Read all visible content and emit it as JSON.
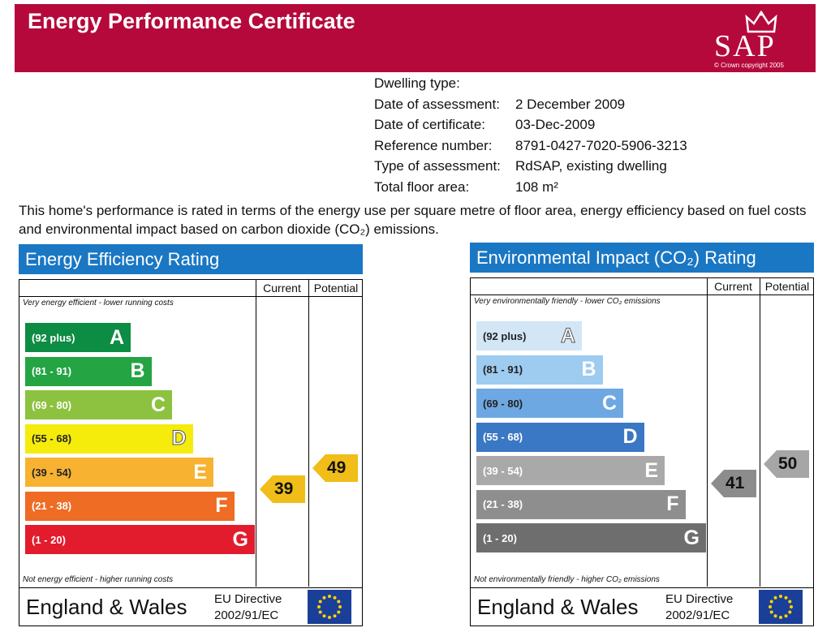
{
  "header": {
    "title": "Energy Performance Certificate",
    "sap_logo": "SAP",
    "copyright": "© Crown copyright 2005"
  },
  "details": [
    {
      "label": "Dwelling type:",
      "value": ""
    },
    {
      "label": "Date of assessment:",
      "value": "2 December 2009"
    },
    {
      "label": "Date of certificate:",
      "value": "03-Dec-2009"
    },
    {
      "label": "Reference number:",
      "value": "8791-0427-7020-5906-3213"
    },
    {
      "label": "Type of assessment:",
      "value": "RdSAP, existing dwelling"
    },
    {
      "label": "Total floor area:",
      "value": "108 m²"
    }
  ],
  "intro": "This home's performance is rated in terms of the energy use per square metre of floor area, energy efficiency based on fuel costs and environmental impact based on carbon dioxide (CO₂) emissions.",
  "energy": {
    "title": "Energy Efficiency Rating",
    "current_label": "Current",
    "potential_label": "Potential",
    "top_note": "Very energy efficient - lower running costs",
    "bottom_note": "Not energy efficient - higher running costs",
    "current": "39",
    "potential": "49",
    "current_color": "#f0bd19",
    "potential_color": "#f0bd19",
    "bands": [
      {
        "range": "(92 plus)",
        "letter": "A",
        "color": "#0d8c43"
      },
      {
        "range": "(81 - 91)",
        "letter": "B",
        "color": "#24a443"
      },
      {
        "range": "(69 - 80)",
        "letter": "C",
        "color": "#8cc23f"
      },
      {
        "range": "(55 - 68)",
        "letter": "D",
        "color": "#f5ec0c"
      },
      {
        "range": "(39 - 54)",
        "letter": "E",
        "color": "#f7b232"
      },
      {
        "range": "(21 - 38)",
        "letter": "F",
        "color": "#ee6c24"
      },
      {
        "range": "(1 - 20)",
        "letter": "G",
        "color": "#e21c2c"
      }
    ],
    "footer_country": "England & Wales",
    "footer_directive_1": "EU Directive",
    "footer_directive_2": "2002/91/EC"
  },
  "environment": {
    "title": "Environmental Impact (CO₂) Rating",
    "current_label": "Current",
    "potential_label": "Potential",
    "top_note": "Very environmentally friendly - lower CO₂ emissions",
    "bottom_note": "Not environmentally friendly - higher CO₂ emissions",
    "current": "41",
    "potential": "50",
    "current_color": "#8c8c8c",
    "potential_color": "#a6a6a6",
    "bands": [
      {
        "range": "(92 plus)",
        "letter": "A",
        "color": "#d2e6f6"
      },
      {
        "range": "(81 - 91)",
        "letter": "B",
        "color": "#9ecbf0"
      },
      {
        "range": "(69 - 80)",
        "letter": "C",
        "color": "#6ea8e2"
      },
      {
        "range": "(55 - 68)",
        "letter": "D",
        "color": "#3a77c4"
      },
      {
        "range": "(39 - 54)",
        "letter": "E",
        "color": "#a9a9a9"
      },
      {
        "range": "(21 - 38)",
        "letter": "F",
        "color": "#8e8e8e"
      },
      {
        "range": "(1 - 20)",
        "letter": "G",
        "color": "#6e6e6e"
      }
    ],
    "footer_country": "England & Wales",
    "footer_directive_1": "EU Directive",
    "footer_directive_2": "2002/91/EC"
  }
}
